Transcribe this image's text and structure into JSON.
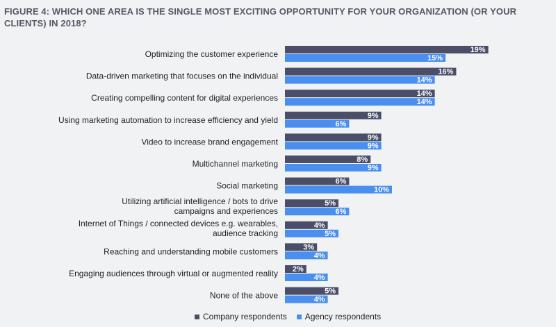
{
  "title": "FIGURE 4: WHICH ONE AREA IS THE SINGLE MOST EXCITING OPPORTUNITY FOR YOUR ORGANIZATION (OR YOUR CLIENTS) IN 2018?",
  "chart_data": {
    "type": "bar",
    "orientation": "horizontal",
    "title": "FIGURE 4: WHICH ONE AREA IS THE SINGLE MOST EXCITING OPPORTUNITY FOR YOUR ORGANIZATION (OR YOUR CLIENTS) IN 2018?",
    "categories": [
      [
        "Optimizing the customer experience"
      ],
      [
        "Data-driven marketing that focuses on the individual"
      ],
      [
        "Creating compelling content for digital experiences"
      ],
      [
        "Using marketing automation to increase efficiency and yield"
      ],
      [
        "Video to increase brand engagement"
      ],
      [
        "Multichannel marketing"
      ],
      [
        "Social marketing"
      ],
      [
        "Utilizing artificial intelligence / bots to drive",
        "campaigns and experiences"
      ],
      [
        "Internet of Things / connected devices e.g. wearables,",
        "audience tracking"
      ],
      [
        "Reaching and understanding mobile customers"
      ],
      [
        "Engaging audiences through virtual or augmented reality"
      ],
      [
        "None of the above"
      ]
    ],
    "series": [
      {
        "name": "Company respondents",
        "color": "#4a4e69",
        "values": [
          19,
          16,
          14,
          9,
          9,
          8,
          6,
          5,
          4,
          3,
          2,
          5
        ]
      },
      {
        "name": "Agency respondents",
        "color": "#4a8ef0",
        "values": [
          15,
          14,
          14,
          6,
          9,
          9,
          10,
          6,
          5,
          4,
          4,
          4
        ]
      }
    ],
    "value_suffix": "%",
    "xlim": [
      0,
      20
    ],
    "grid": false,
    "legend_position": "bottom"
  }
}
